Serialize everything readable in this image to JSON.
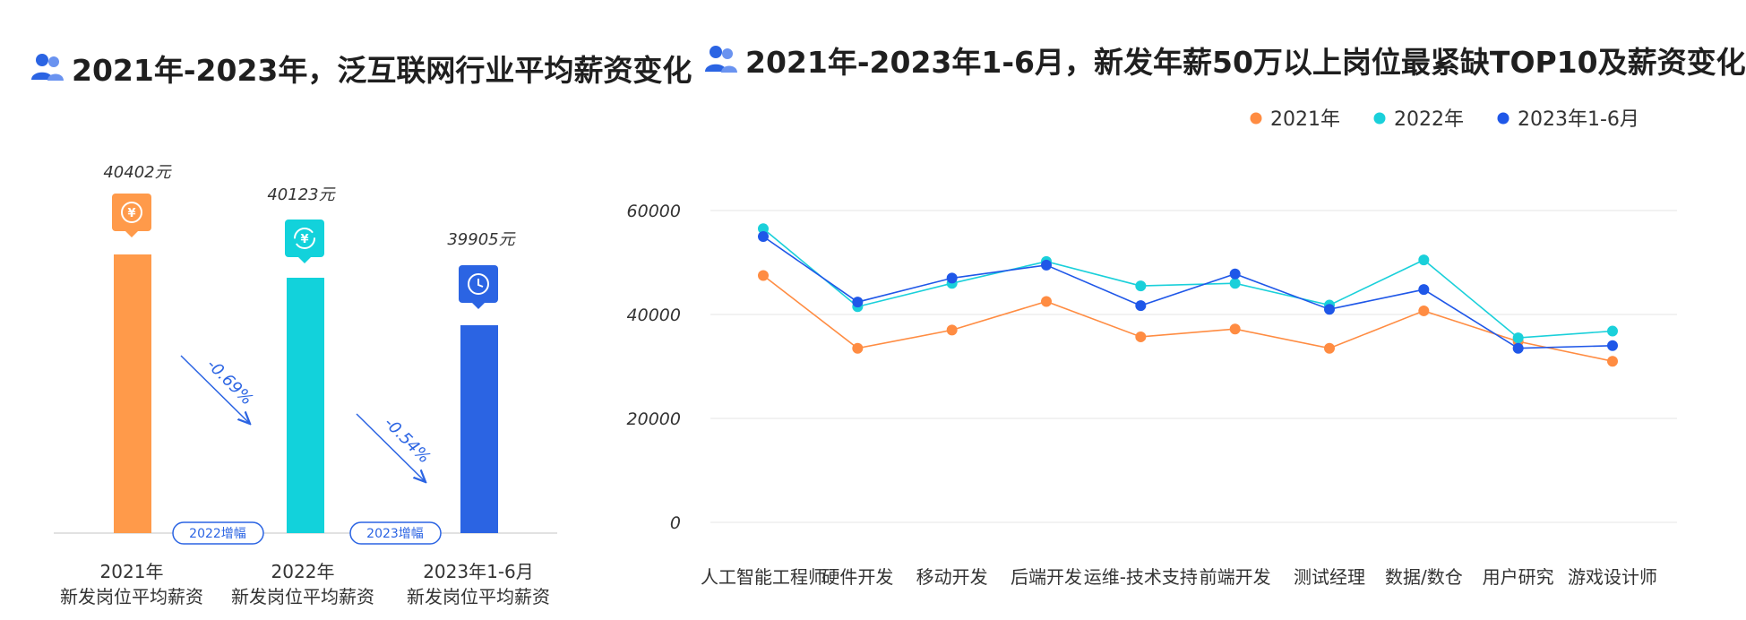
{
  "left_panel": {
    "title": "2021年-2023年，泛互联网行业平均薪资变化",
    "bars": [
      {
        "value_label": "40402元",
        "category_line1": "2021年",
        "category_line2": "新发岗位平均薪资",
        "color": "#ff9a4a",
        "icon": "yen-coin-icon"
      },
      {
        "value_label": "40123元",
        "category_line1": "2022年",
        "category_line2": "新发岗位平均薪资",
        "color": "#12d2db",
        "icon": "yen-exchange-icon"
      },
      {
        "value_label": "39905元",
        "category_line1": "2023年1-6月",
        "category_line2": "新发岗位平均薪资",
        "color": "#2b64e3",
        "icon": "clock-cycle-icon"
      }
    ],
    "changes": [
      {
        "badge": "2022增幅",
        "percent": "-0.69%"
      },
      {
        "badge": "2023增幅",
        "percent": "-0.54%"
      }
    ]
  },
  "right_panel": {
    "title": "2021年-2023年1-6月，新发年薪50万以上岗位最紧缺TOP10及薪资变化"
  },
  "chart_data": [
    {
      "type": "bar",
      "title": "2021年-2023年，泛互联网行业平均薪资变化",
      "categories": [
        "2021年 新发岗位平均薪资",
        "2022年 新发岗位平均薪资",
        "2023年1-6月 新发岗位平均薪资"
      ],
      "values": [
        40402,
        40123,
        39905
      ],
      "data_labels": [
        "40402元",
        "40123元",
        "39905元"
      ],
      "annotations": [
        "2022增幅 -0.69%",
        "2023增幅 -0.54%"
      ]
    },
    {
      "type": "line",
      "title": "2021年-2023年1-6月，新发年薪50万以上岗位最紧缺TOP10及薪资变化",
      "categories": [
        "人工智能工程师",
        "硬件开发",
        "移动开发",
        "后端开发",
        "运维-技术支持",
        "前端开发",
        "测试经理",
        "数据/数仓",
        "用户研究",
        "游戏设计师"
      ],
      "yticks": [
        0,
        20000,
        40000,
        60000
      ],
      "ylim": [
        0,
        60000
      ],
      "grid": true,
      "legend_position": "top-right",
      "series": [
        {
          "name": "2021年",
          "color": "#ff8c42",
          "values": [
            47500,
            33500,
            37000,
            42500,
            35700,
            37200,
            33500,
            40700,
            34800,
            31000
          ]
        },
        {
          "name": "2022年",
          "color": "#1ad0da",
          "values": [
            56500,
            41500,
            46000,
            50200,
            45500,
            46000,
            41800,
            50500,
            35500,
            36800
          ]
        },
        {
          "name": "2023年1-6月",
          "color": "#1f57e8",
          "values": [
            55000,
            42400,
            47000,
            49500,
            41700,
            47800,
            41000,
            44800,
            33500,
            34000
          ]
        }
      ]
    }
  ]
}
